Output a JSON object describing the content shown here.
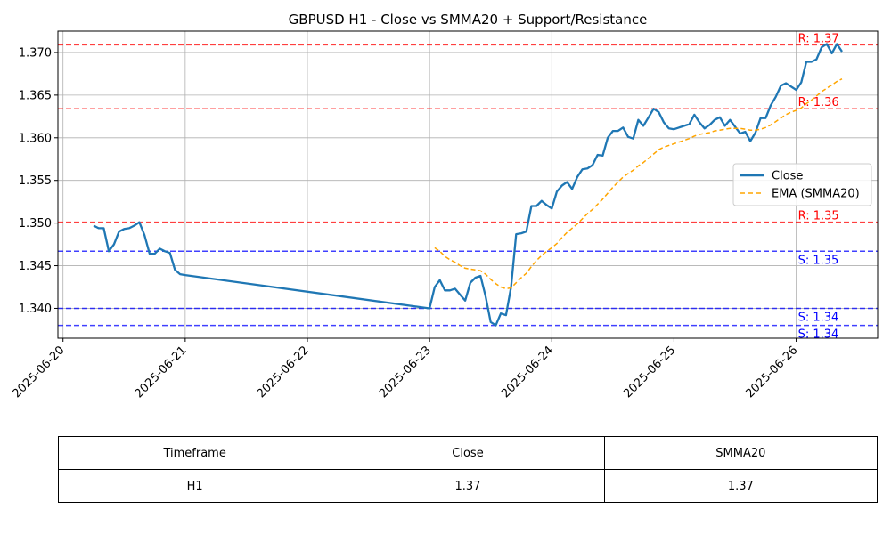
{
  "chart_data": {
    "type": "line",
    "title": "GBPUSD H1 - Close vs SMMA20 + Support/Resistance",
    "xlabel": "",
    "ylabel": "",
    "x_ticks": [
      "2025-06-20",
      "2025-06-21",
      "2025-06-22",
      "2025-06-23",
      "2025-06-24",
      "2025-06-25",
      "2025-06-26"
    ],
    "x_range": [
      "2025-06-19T23:00",
      "2025-06-26T16:00"
    ],
    "y_ticks": [
      "1.340",
      "1.345",
      "1.350",
      "1.355",
      "1.360",
      "1.365",
      "1.370"
    ],
    "y_tick_values": [
      1.34,
      1.345,
      1.35,
      1.355,
      1.36,
      1.365,
      1.37
    ],
    "ylim": [
      1.3365,
      1.3725
    ],
    "grid": true,
    "legend_position": "center-right",
    "series": [
      {
        "name": "Close",
        "color": "#1f77b4",
        "style": "solid",
        "points": [
          [
            "2025-06-20T06:00",
            1.3497
          ],
          [
            "2025-06-20T07:00",
            1.3494
          ],
          [
            "2025-06-20T08:00",
            1.3494
          ],
          [
            "2025-06-20T09:00",
            1.3467
          ],
          [
            "2025-06-20T10:00",
            1.3475
          ],
          [
            "2025-06-20T11:00",
            1.349
          ],
          [
            "2025-06-20T12:00",
            1.3493
          ],
          [
            "2025-06-20T13:00",
            1.3494
          ],
          [
            "2025-06-20T14:00",
            1.3497
          ],
          [
            "2025-06-20T15:00",
            1.3501
          ],
          [
            "2025-06-20T16:00",
            1.3486
          ],
          [
            "2025-06-20T17:00",
            1.3464
          ],
          [
            "2025-06-20T18:00",
            1.3464
          ],
          [
            "2025-06-20T19:00",
            1.347
          ],
          [
            "2025-06-20T20:00",
            1.3467
          ],
          [
            "2025-06-20T21:00",
            1.3465
          ],
          [
            "2025-06-20T22:00",
            1.3445
          ],
          [
            "2025-06-20T23:00",
            1.344
          ],
          [
            "2025-06-21T00:00",
            1.3439
          ],
          [
            "2025-06-23T00:00",
            1.34
          ],
          [
            "2025-06-23T01:00",
            1.3425
          ],
          [
            "2025-06-23T02:00",
            1.3433
          ],
          [
            "2025-06-23T03:00",
            1.3421
          ],
          [
            "2025-06-23T04:00",
            1.3421
          ],
          [
            "2025-06-23T05:00",
            1.3423
          ],
          [
            "2025-06-23T06:00",
            1.3416
          ],
          [
            "2025-06-23T07:00",
            1.3409
          ],
          [
            "2025-06-23T08:00",
            1.343
          ],
          [
            "2025-06-23T09:00",
            1.3436
          ],
          [
            "2025-06-23T10:00",
            1.3438
          ],
          [
            "2025-06-23T11:00",
            1.3414
          ],
          [
            "2025-06-23T12:00",
            1.3384
          ],
          [
            "2025-06-23T13:00",
            1.338
          ],
          [
            "2025-06-23T14:00",
            1.3394
          ],
          [
            "2025-06-23T15:00",
            1.3392
          ],
          [
            "2025-06-23T16:00",
            1.3425
          ],
          [
            "2025-06-23T17:00",
            1.3487
          ],
          [
            "2025-06-23T18:00",
            1.3488
          ],
          [
            "2025-06-23T19:00",
            1.349
          ],
          [
            "2025-06-23T20:00",
            1.352
          ],
          [
            "2025-06-23T21:00",
            1.352
          ],
          [
            "2025-06-23T22:00",
            1.3526
          ],
          [
            "2025-06-23T23:00",
            1.3521
          ],
          [
            "2025-06-24T00:00",
            1.3517
          ],
          [
            "2025-06-24T01:00",
            1.3537
          ],
          [
            "2025-06-24T02:00",
            1.3544
          ],
          [
            "2025-06-24T03:00",
            1.3548
          ],
          [
            "2025-06-24T04:00",
            1.354
          ],
          [
            "2025-06-24T05:00",
            1.3554
          ],
          [
            "2025-06-24T06:00",
            1.3563
          ],
          [
            "2025-06-24T07:00",
            1.3564
          ],
          [
            "2025-06-24T08:00",
            1.3568
          ],
          [
            "2025-06-24T09:00",
            1.358
          ],
          [
            "2025-06-24T10:00",
            1.3579
          ],
          [
            "2025-06-24T11:00",
            1.36
          ],
          [
            "2025-06-24T12:00",
            1.3608
          ],
          [
            "2025-06-24T13:00",
            1.3608
          ],
          [
            "2025-06-24T14:00",
            1.3612
          ],
          [
            "2025-06-24T15:00",
            1.3601
          ],
          [
            "2025-06-24T16:00",
            1.3599
          ],
          [
            "2025-06-24T17:00",
            1.3621
          ],
          [
            "2025-06-24T18:00",
            1.3614
          ],
          [
            "2025-06-24T19:00",
            1.3624
          ],
          [
            "2025-06-24T20:00",
            1.3634
          ],
          [
            "2025-06-24T21:00",
            1.363
          ],
          [
            "2025-06-24T22:00",
            1.3618
          ],
          [
            "2025-06-24T23:00",
            1.3611
          ],
          [
            "2025-06-25T00:00",
            1.361
          ],
          [
            "2025-06-25T01:00",
            1.3612
          ],
          [
            "2025-06-25T02:00",
            1.3614
          ],
          [
            "2025-06-25T03:00",
            1.3616
          ],
          [
            "2025-06-25T04:00",
            1.3627
          ],
          [
            "2025-06-25T05:00",
            1.3618
          ],
          [
            "2025-06-25T06:00",
            1.3611
          ],
          [
            "2025-06-25T07:00",
            1.3615
          ],
          [
            "2025-06-25T08:00",
            1.3621
          ],
          [
            "2025-06-25T09:00",
            1.3624
          ],
          [
            "2025-06-25T10:00",
            1.3614
          ],
          [
            "2025-06-25T11:00",
            1.3621
          ],
          [
            "2025-06-25T12:00",
            1.3613
          ],
          [
            "2025-06-25T13:00",
            1.3605
          ],
          [
            "2025-06-25T14:00",
            1.3607
          ],
          [
            "2025-06-25T15:00",
            1.3596
          ],
          [
            "2025-06-25T16:00",
            1.3606
          ],
          [
            "2025-06-25T17:00",
            1.3623
          ],
          [
            "2025-06-25T18:00",
            1.3623
          ],
          [
            "2025-06-25T19:00",
            1.3638
          ],
          [
            "2025-06-25T20:00",
            1.3648
          ],
          [
            "2025-06-25T21:00",
            1.3661
          ],
          [
            "2025-06-25T22:00",
            1.3664
          ],
          [
            "2025-06-25T23:00",
            1.366
          ],
          [
            "2025-06-26T00:00",
            1.3656
          ],
          [
            "2025-06-26T01:00",
            1.3665
          ],
          [
            "2025-06-26T02:00",
            1.3689
          ],
          [
            "2025-06-26T03:00",
            1.3689
          ],
          [
            "2025-06-26T04:00",
            1.3692
          ],
          [
            "2025-06-26T05:00",
            1.3706
          ],
          [
            "2025-06-26T06:00",
            1.371
          ],
          [
            "2025-06-26T07:00",
            1.3699
          ],
          [
            "2025-06-26T08:00",
            1.371
          ],
          [
            "2025-06-26T09:00",
            1.3701
          ]
        ]
      },
      {
        "name": "EMA (SMMA20)",
        "color": "#ffa500",
        "style": "dashed",
        "points": [
          [
            "2025-06-23T01:00",
            1.3471
          ],
          [
            "2025-06-23T02:00",
            1.3467
          ],
          [
            "2025-06-23T03:00",
            1.3461
          ],
          [
            "2025-06-23T04:00",
            1.3457
          ],
          [
            "2025-06-23T05:00",
            1.3454
          ],
          [
            "2025-06-23T06:00",
            1.345
          ],
          [
            "2025-06-23T07:00",
            1.3447
          ],
          [
            "2025-06-23T08:00",
            1.3446
          ],
          [
            "2025-06-23T09:00",
            1.3445
          ],
          [
            "2025-06-23T10:00",
            1.3444
          ],
          [
            "2025-06-23T11:00",
            1.344
          ],
          [
            "2025-06-23T12:00",
            1.3434
          ],
          [
            "2025-06-23T13:00",
            1.3429
          ],
          [
            "2025-06-23T14:00",
            1.3425
          ],
          [
            "2025-06-23T15:00",
            1.3423
          ],
          [
            "2025-06-23T16:00",
            1.3424
          ],
          [
            "2025-06-23T17:00",
            1.343
          ],
          [
            "2025-06-23T18:00",
            1.3436
          ],
          [
            "2025-06-23T19:00",
            1.3441
          ],
          [
            "2025-06-23T20:00",
            1.3449
          ],
          [
            "2025-06-23T21:00",
            1.3456
          ],
          [
            "2025-06-23T22:00",
            1.3462
          ],
          [
            "2025-06-23T23:00",
            1.3467
          ],
          [
            "2025-06-24T00:00",
            1.3471
          ],
          [
            "2025-06-24T01:00",
            1.3476
          ],
          [
            "2025-06-24T02:00",
            1.3483
          ],
          [
            "2025-06-24T03:00",
            1.3489
          ],
          [
            "2025-06-24T04:00",
            1.3494
          ],
          [
            "2025-06-24T05:00",
            1.3499
          ],
          [
            "2025-06-24T06:00",
            1.3505
          ],
          [
            "2025-06-24T07:00",
            1.3511
          ],
          [
            "2025-06-24T08:00",
            1.3516
          ],
          [
            "2025-06-24T09:00",
            1.3522
          ],
          [
            "2025-06-24T10:00",
            1.3528
          ],
          [
            "2025-06-24T11:00",
            1.3535
          ],
          [
            "2025-06-24T12:00",
            1.3542
          ],
          [
            "2025-06-24T13:00",
            1.3548
          ],
          [
            "2025-06-24T14:00",
            1.3554
          ],
          [
            "2025-06-24T15:00",
            1.3558
          ],
          [
            "2025-06-24T16:00",
            1.3562
          ],
          [
            "2025-06-24T17:00",
            1.3567
          ],
          [
            "2025-06-24T18:00",
            1.3571
          ],
          [
            "2025-06-24T19:00",
            1.3576
          ],
          [
            "2025-06-24T20:00",
            1.3581
          ],
          [
            "2025-06-24T21:00",
            1.3586
          ],
          [
            "2025-06-24T22:00",
            1.3589
          ],
          [
            "2025-06-24T23:00",
            1.3591
          ],
          [
            "2025-06-25T00:00",
            1.3593
          ],
          [
            "2025-06-25T01:00",
            1.3595
          ],
          [
            "2025-06-25T02:00",
            1.3597
          ],
          [
            "2025-06-25T03:00",
            1.3599
          ],
          [
            "2025-06-25T04:00",
            1.3602
          ],
          [
            "2025-06-25T05:00",
            1.3604
          ],
          [
            "2025-06-25T06:00",
            1.3605
          ],
          [
            "2025-06-25T07:00",
            1.3606
          ],
          [
            "2025-06-25T08:00",
            1.3608
          ],
          [
            "2025-06-25T09:00",
            1.3609
          ],
          [
            "2025-06-25T10:00",
            1.361
          ],
          [
            "2025-06-25T11:00",
            1.3611
          ],
          [
            "2025-06-25T12:00",
            1.3611
          ],
          [
            "2025-06-25T13:00",
            1.3611
          ],
          [
            "2025-06-25T14:00",
            1.361
          ],
          [
            "2025-06-25T15:00",
            1.3609
          ],
          [
            "2025-06-25T16:00",
            1.3609
          ],
          [
            "2025-06-25T17:00",
            1.361
          ],
          [
            "2025-06-25T18:00",
            1.3612
          ],
          [
            "2025-06-25T19:00",
            1.3615
          ],
          [
            "2025-06-25T20:00",
            1.3619
          ],
          [
            "2025-06-25T21:00",
            1.3623
          ],
          [
            "2025-06-25T22:00",
            1.3627
          ],
          [
            "2025-06-25T23:00",
            1.363
          ],
          [
            "2025-06-26T00:00",
            1.3632
          ],
          [
            "2025-06-26T01:00",
            1.3635
          ],
          [
            "2025-06-26T02:00",
            1.364
          ],
          [
            "2025-06-26T03:00",
            1.3644
          ],
          [
            "2025-06-26T04:00",
            1.3649
          ],
          [
            "2025-06-26T05:00",
            1.3654
          ],
          [
            "2025-06-26T06:00",
            1.3658
          ],
          [
            "2025-06-26T07:00",
            1.3662
          ],
          [
            "2025-06-26T08:00",
            1.3666
          ],
          [
            "2025-06-26T09:00",
            1.3669
          ]
        ]
      }
    ],
    "levels": [
      {
        "kind": "resistance",
        "value": 1.3709,
        "label": "R: 1.37",
        "color": "#ff0000"
      },
      {
        "kind": "resistance",
        "value": 1.3634,
        "label": "R: 1.36",
        "color": "#ff0000"
      },
      {
        "kind": "resistance",
        "value": 1.3501,
        "label": "R: 1.35",
        "color": "#ff0000"
      },
      {
        "kind": "support",
        "value": 1.3467,
        "label": "S: 1.35",
        "color": "#0000ff"
      },
      {
        "kind": "support",
        "value": 1.34,
        "label": "S: 1.34",
        "color": "#0000ff"
      },
      {
        "kind": "support",
        "value": 1.338,
        "label": "S: 1.34",
        "color": "#0000ff"
      }
    ]
  },
  "table": {
    "headers": [
      "Timeframe",
      "Close",
      "SMMA20"
    ],
    "row": [
      "H1",
      "1.37",
      "1.37"
    ]
  }
}
